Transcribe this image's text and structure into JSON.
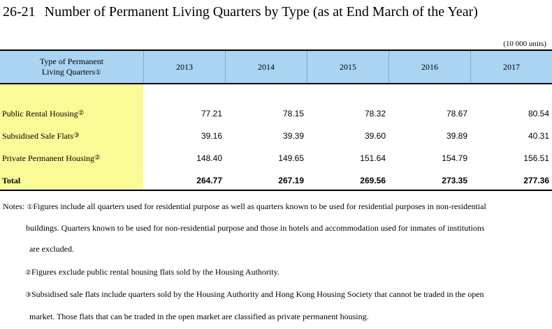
{
  "title": {
    "number": "26-21",
    "text": "Number of Permanent Living Quarters by Type (as at End March of the Year)"
  },
  "units": "(10 000 units)",
  "table": {
    "header_label_line1": "Type of Permanent",
    "header_label_line2": "Living Quarters",
    "header_label_note": "①",
    "years": [
      "2013",
      "2014",
      "2015",
      "2016",
      "2017"
    ],
    "rows": [
      {
        "label": "Public Rental Housing",
        "note": "②",
        "values": [
          "77.21",
          "78.15",
          "78.32",
          "78.67",
          "80.54"
        ]
      },
      {
        "label": "Subsidised Sale Flats",
        "note": "③",
        "values": [
          "39.16",
          "39.39",
          "39.60",
          "39.89",
          "40.31"
        ]
      },
      {
        "label": "Private Permanent Housing",
        "note": "②",
        "values": [
          "148.40",
          "149.65",
          "151.64",
          "154.79",
          "156.51"
        ]
      },
      {
        "label": "Total",
        "note": "",
        "values": [
          "264.77",
          "267.19",
          "269.56",
          "273.35",
          "277.36"
        ]
      }
    ]
  },
  "notes": {
    "prefix": "Notes:",
    "n1_marker": "①",
    "n1_line1": "Figures include all quarters used for residential purpose as well as quarters known to be used for residential purposes in non-residential",
    "n1_line2": "buildings. Quarters known to be used for non-residential purpose and those in hotels and accommodation used for inmates of institutions",
    "n1_line3": "are excluded.",
    "n2_marker": "②",
    "n2_line1": "Figures exclude public rental housing flats sold by the Housing Authority.",
    "n3_marker": "③",
    "n3_line1": "Subsidised sale flats include quarters sold by the Housing Authority and Hong Kong Housing Society that cannot be traded in the open",
    "n3_line2": "market. Those flats that can be traded in the open market are classified as private permanent housing."
  }
}
